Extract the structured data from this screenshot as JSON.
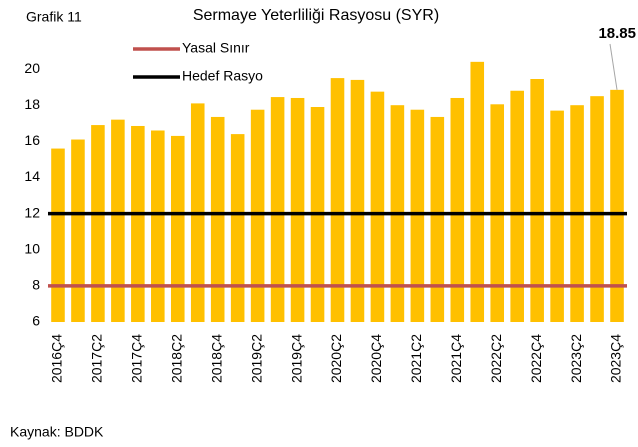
{
  "chart_data": {
    "type": "bar",
    "label": "Grafik 11",
    "title": "Sermaye Yeterliliği Rasyosu (SYR)",
    "source": "Kaynak: BDDK",
    "categories": [
      "2016Ç4",
      null,
      "2017Ç2",
      null,
      "2017Ç4",
      null,
      "2018Ç2",
      null,
      "2018Ç4",
      null,
      "2019Ç2",
      null,
      "2019Ç4",
      null,
      "2020Ç2",
      null,
      "2020Ç4",
      null,
      "2021Ç2",
      null,
      "2021Ç4",
      null,
      "2022Ç2",
      null,
      "2022Ç4",
      null,
      "2023Ç2",
      null,
      "2023Ç4"
    ],
    "series": [
      {
        "type": "bar",
        "color": "#FFC000",
        "values": [
          15.6,
          16.1,
          16.9,
          17.2,
          16.85,
          16.6,
          16.3,
          18.1,
          17.35,
          16.4,
          17.75,
          18.45,
          18.4,
          17.9,
          19.5,
          19.4,
          18.75,
          18.0,
          17.75,
          17.35,
          18.4,
          20.4,
          18.05,
          18.8,
          19.45,
          17.7,
          18.0,
          18.5,
          18.85
        ]
      },
      {
        "type": "line",
        "name": "Yasal Sınır",
        "color": "#C0504D",
        "values": [
          8,
          8,
          8,
          8,
          8,
          8,
          8,
          8,
          8,
          8,
          8,
          8,
          8,
          8,
          8,
          8,
          8,
          8,
          8,
          8,
          8,
          8,
          8,
          8,
          8,
          8,
          8,
          8,
          8
        ]
      },
      {
        "type": "line",
        "name": "Hedef Rasyo",
        "color": "#000000",
        "values": [
          12,
          12,
          12,
          12,
          12,
          12,
          12,
          12,
          12,
          12,
          12,
          12,
          12,
          12,
          12,
          12,
          12,
          12,
          12,
          12,
          12,
          12,
          12,
          12,
          12,
          12,
          12,
          12,
          12
        ]
      }
    ],
    "ylim": [
      6,
      21
    ],
    "yticks": [
      6,
      8,
      10,
      12,
      14,
      16,
      18,
      20
    ],
    "legend": "top-left"
  }
}
